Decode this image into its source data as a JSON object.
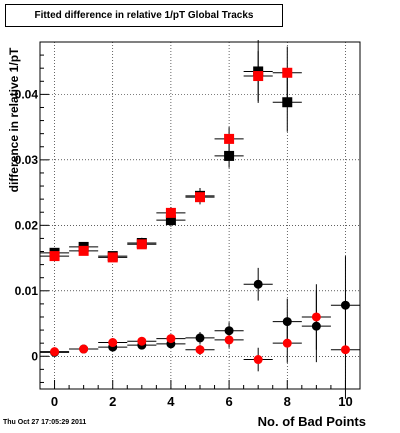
{
  "chart_data": {
    "type": "scatter",
    "title": "Fitted difference in relative 1/pT  Global Tracks",
    "xlabel": "No. of Bad Points",
    "ylabel": "difference in relative 1/pT",
    "xlim": [
      -0.5,
      10.5
    ],
    "ylim": [
      -0.005,
      0.048
    ],
    "x_ticks": [
      0,
      2,
      4,
      6,
      8,
      10
    ],
    "y_ticks": [
      0,
      0.01,
      0.02,
      0.03,
      0.04
    ],
    "y_tick_labels": [
      "0",
      "0.01",
      "0.02",
      "0.03",
      "0.04"
    ],
    "x_tick_labels": [
      "0",
      "2",
      "4",
      "6",
      "8",
      "10"
    ],
    "grid": true,
    "series": [
      {
        "marker": "square",
        "color": "#000000",
        "points": [
          {
            "x": 0,
            "y": 0.0158,
            "xerr": 0.5,
            "yerr": 0.0007
          },
          {
            "x": 1,
            "y": 0.0167,
            "xerr": 0.5,
            "yerr": 0.0007
          },
          {
            "x": 2,
            "y": 0.0153,
            "xerr": 0.5,
            "yerr": 0.0007
          },
          {
            "x": 3,
            "y": 0.0173,
            "xerr": 0.5,
            "yerr": 0.0008
          },
          {
            "x": 4,
            "y": 0.0208,
            "xerr": 0.5,
            "yerr": 0.001
          },
          {
            "x": 5,
            "y": 0.0245,
            "xerr": 0.5,
            "yerr": 0.0012
          },
          {
            "x": 6,
            "y": 0.0306,
            "xerr": 0.5,
            "yerr": 0.0018
          },
          {
            "x": 7,
            "y": 0.0435,
            "xerr": 0.5,
            "yerr": 0.0048
          },
          {
            "x": 8,
            "y": 0.0388,
            "xerr": 0.5,
            "yerr": 0.0045
          }
        ]
      },
      {
        "marker": "square",
        "color": "#ff0000",
        "points": [
          {
            "x": 0,
            "y": 0.0153,
            "xerr": 0.5,
            "yerr": 0.0006
          },
          {
            "x": 1,
            "y": 0.0161,
            "xerr": 0.5,
            "yerr": 0.0006
          },
          {
            "x": 2,
            "y": 0.0151,
            "xerr": 0.5,
            "yerr": 0.0006
          },
          {
            "x": 3,
            "y": 0.0171,
            "xerr": 0.5,
            "yerr": 0.0007
          },
          {
            "x": 4,
            "y": 0.0219,
            "xerr": 0.5,
            "yerr": 0.0009
          },
          {
            "x": 5,
            "y": 0.0243,
            "xerr": 0.5,
            "yerr": 0.0011
          },
          {
            "x": 6,
            "y": 0.0332,
            "xerr": 0.5,
            "yerr": 0.0018
          },
          {
            "x": 7,
            "y": 0.0428,
            "xerr": 0.5,
            "yerr": 0.0038
          },
          {
            "x": 8,
            "y": 0.0433,
            "xerr": 0.5,
            "yerr": 0.004
          }
        ]
      },
      {
        "marker": "circle",
        "color": "#000000",
        "points": [
          {
            "x": 0,
            "y": 0.0006,
            "xerr": 0.5,
            "yerr": 0.0003
          },
          {
            "x": 1,
            "y": 0.0011,
            "xerr": 0.5,
            "yerr": 0.0003
          },
          {
            "x": 2,
            "y": 0.0014,
            "xerr": 0.5,
            "yerr": 0.0004
          },
          {
            "x": 3,
            "y": 0.0017,
            "xerr": 0.5,
            "yerr": 0.0005
          },
          {
            "x": 4,
            "y": 0.0019,
            "xerr": 0.5,
            "yerr": 0.0006
          },
          {
            "x": 5,
            "y": 0.0028,
            "xerr": 0.5,
            "yerr": 0.0009
          },
          {
            "x": 6,
            "y": 0.0039,
            "xerr": 0.5,
            "yerr": 0.0013
          },
          {
            "x": 7,
            "y": 0.011,
            "xerr": 0.5,
            "yerr": 0.0025
          },
          {
            "x": 8,
            "y": 0.0053,
            "xerr": 0.5,
            "yerr": 0.0035
          },
          {
            "x": 9,
            "y": 0.0046,
            "xerr": 0.5,
            "yerr": 0.0055
          },
          {
            "x": 10,
            "y": 0.0078,
            "xerr": 0.5,
            "yerr": 0.0075
          }
        ]
      },
      {
        "marker": "circle",
        "color": "#ff0000",
        "points": [
          {
            "x": 0,
            "y": 0.0007,
            "xerr": 0.5,
            "yerr": 0.0003
          },
          {
            "x": 1,
            "y": 0.0011,
            "xerr": 0.5,
            "yerr": 0.0003
          },
          {
            "x": 2,
            "y": 0.0021,
            "xerr": 0.5,
            "yerr": 0.0004
          },
          {
            "x": 3,
            "y": 0.0023,
            "xerr": 0.5,
            "yerr": 0.0005
          },
          {
            "x": 4,
            "y": 0.0027,
            "xerr": 0.5,
            "yerr": 0.0006
          },
          {
            "x": 5,
            "y": 0.001,
            "xerr": 0.5,
            "yerr": 0.0008
          },
          {
            "x": 6,
            "y": 0.0025,
            "xerr": 0.5,
            "yerr": 0.0012
          },
          {
            "x": 7,
            "y": -0.0005,
            "xerr": 0.5,
            "yerr": 0.0018
          },
          {
            "x": 8,
            "y": 0.002,
            "xerr": 0.5,
            "yerr": 0.003
          },
          {
            "x": 9,
            "y": 0.006,
            "xerr": 0.5,
            "yerr": 0.005
          },
          {
            "x": 10,
            "y": 0.001,
            "xerr": 0.5,
            "yerr": 0.0075
          }
        ]
      }
    ]
  },
  "footer": {
    "timestamp": "Thu Oct 27 17:05:29 2011"
  }
}
